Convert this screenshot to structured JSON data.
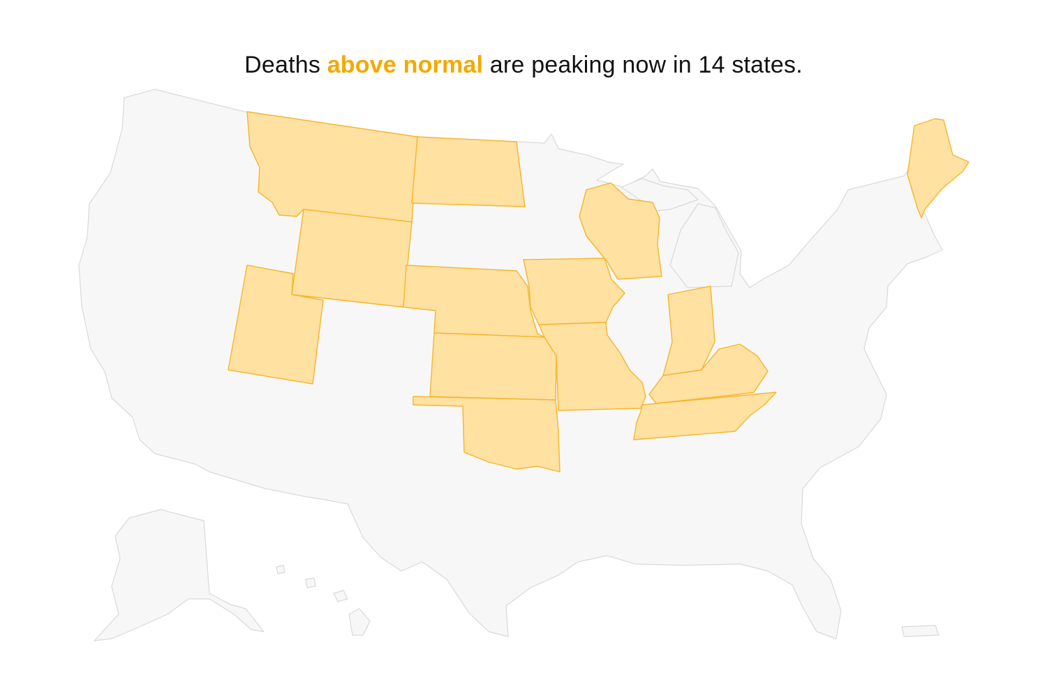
{
  "headline": {
    "prefix": "Deaths ",
    "highlight": "above normal",
    "suffix": " are peaking now in 14 states."
  },
  "colors": {
    "highlight_text": "#f5a800",
    "peaking_fill": "#ffe1a1",
    "peaking_stroke": "#f6b52c",
    "other_fill": "#f7f7f7",
    "other_stroke": "#d9d9d9"
  },
  "peaking_states": [
    "Montana",
    "North Dakota",
    "Wyoming",
    "Utah",
    "Nebraska",
    "Kansas",
    "Oklahoma",
    "Iowa",
    "Missouri",
    "Wisconsin",
    "Indiana",
    "Kentucky",
    "Tennessee",
    "Maine"
  ]
}
